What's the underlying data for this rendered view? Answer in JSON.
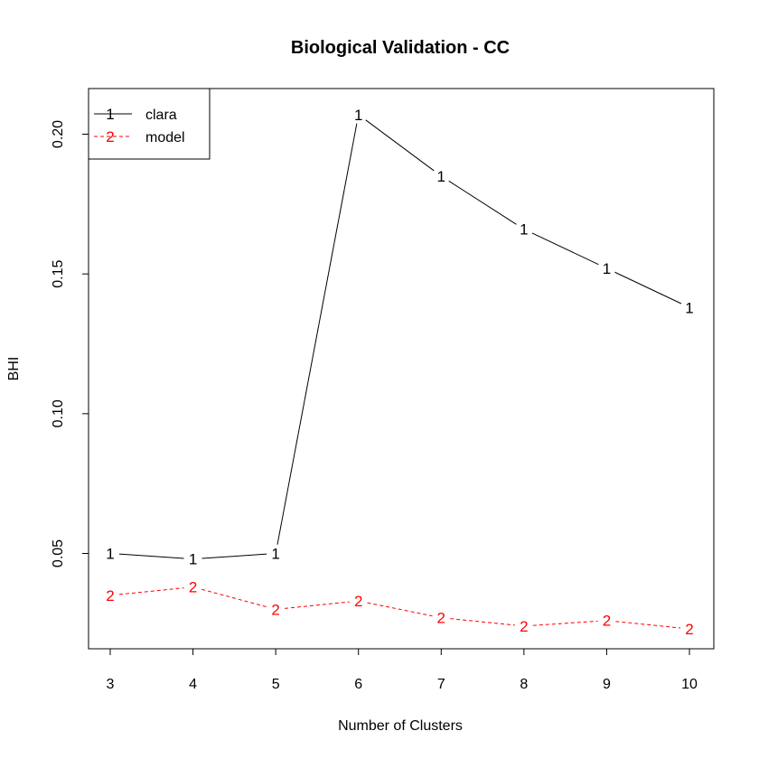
{
  "chart_data": {
    "type": "line",
    "title": "Biological Validation - CC",
    "xlabel": "Number of Clusters",
    "ylabel": "BHI",
    "x": [
      3,
      4,
      5,
      6,
      7,
      8,
      9,
      10
    ],
    "xlim": [
      3,
      10
    ],
    "ylim": [
      0.023,
      0.207
    ],
    "yticks": [
      0.05,
      0.1,
      0.15,
      0.2
    ],
    "ytick_labels": [
      "0.05",
      "0.10",
      "0.15",
      "0.20"
    ],
    "xtick_labels": [
      "3",
      "4",
      "5",
      "6",
      "7",
      "8",
      "9",
      "10"
    ],
    "grid": false,
    "legend_position": "top-left",
    "series": [
      {
        "name": "clara",
        "marker": "1",
        "color": "#000000",
        "line_style": "solid",
        "values": [
          0.05,
          0.048,
          0.05,
          0.207,
          0.185,
          0.166,
          0.152,
          0.138
        ]
      },
      {
        "name": "model",
        "marker": "2",
        "color": "#ff0000",
        "line_style": "dashed",
        "values": [
          0.035,
          0.038,
          0.03,
          0.033,
          0.027,
          0.024,
          0.026,
          0.023
        ]
      }
    ]
  }
}
